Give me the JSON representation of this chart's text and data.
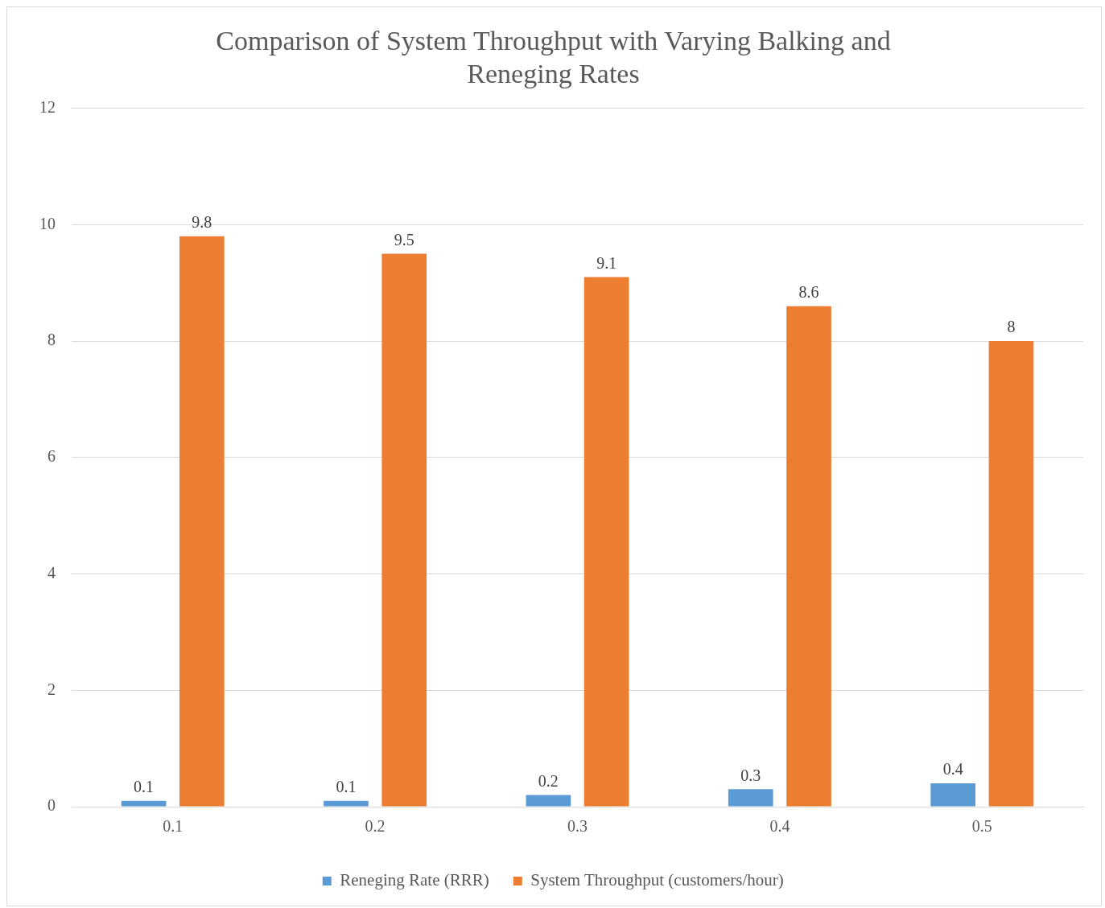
{
  "chart_data": {
    "type": "bar",
    "title": "Comparison of System Throughput with Varying Balking and Reneging Rates",
    "categories": [
      "0.1",
      "0.2",
      "0.3",
      "0.4",
      "0.5"
    ],
    "series": [
      {
        "name": "Reneging Rate (RRR)",
        "color": "#5b9bd5",
        "values": [
          0.1,
          0.1,
          0.2,
          0.3,
          0.4
        ]
      },
      {
        "name": "System Throughput (customers/hour)",
        "color": "#ed7d31",
        "values": [
          9.8,
          9.5,
          9.1,
          8.6,
          8
        ]
      }
    ],
    "ylim": [
      0,
      12
    ],
    "yticks": [
      0,
      2,
      4,
      6,
      8,
      10,
      12
    ],
    "grid": "y",
    "legend": "bottom",
    "data_labels": true
  }
}
